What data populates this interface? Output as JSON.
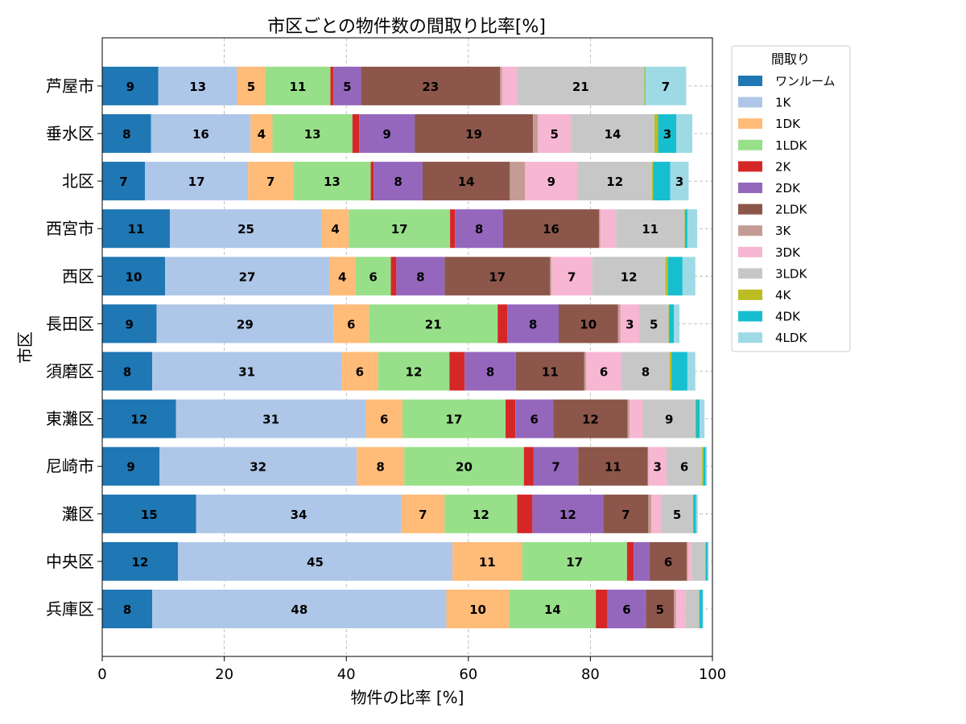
{
  "chart_data": {
    "type": "bar",
    "orientation": "horizontal",
    "stacked": true,
    "title": "市区ごとの物件数の間取り比率[%]",
    "xlabel": "物件の比率 [%]",
    "ylabel": "市区",
    "xlim": [
      0,
      100
    ],
    "xticks": [
      "0",
      "20",
      "40",
      "60",
      "80",
      "100"
    ],
    "grid": true,
    "legend_title": "間取り",
    "legend_position": "outside-top-right",
    "categories": [
      "兵庫区",
      "中央区",
      "灘区",
      "尼崎市",
      "東灘区",
      "須磨区",
      "長田区",
      "西区",
      "西宮市",
      "北区",
      "垂水区",
      "芦屋市"
    ],
    "series": [
      {
        "name": "ワンルーム",
        "color": "#1f77b4",
        "values": [
          8.2,
          12.4,
          15.4,
          9.4,
          12.1,
          8.2,
          8.9,
          10.3,
          11.1,
          7.0,
          8.0,
          9.2
        ]
      },
      {
        "name": "1K",
        "color": "#aec7e8",
        "values": [
          48.2,
          45.0,
          33.6,
          32.3,
          31.1,
          31.0,
          29.0,
          26.9,
          24.9,
          16.9,
          16.3,
          12.9
        ]
      },
      {
        "name": "1DK",
        "color": "#ffbb78",
        "values": [
          10.3,
          11.4,
          7.1,
          7.8,
          6.0,
          6.0,
          5.8,
          4.3,
          4.4,
          7.4,
          3.6,
          4.6
        ]
      },
      {
        "name": "1LDK",
        "color": "#98df8a",
        "values": [
          14.2,
          17.2,
          11.9,
          19.6,
          16.9,
          11.7,
          21.1,
          5.8,
          16.6,
          12.7,
          13.1,
          10.7
        ]
      },
      {
        "name": "2K",
        "color": "#d62728",
        "values": [
          1.9,
          1.1,
          2.5,
          1.6,
          1.6,
          2.5,
          1.6,
          0.9,
          0.8,
          0.5,
          1.1,
          0.5
        ]
      },
      {
        "name": "2DK",
        "color": "#9467bd",
        "values": [
          6.3,
          2.6,
          11.6,
          7.3,
          6.2,
          8.4,
          8.4,
          7.9,
          7.9,
          8.0,
          9.1,
          4.5
        ]
      },
      {
        "name": "2LDK",
        "color": "#8c564b",
        "values": [
          4.6,
          6.1,
          7.4,
          11.4,
          12.2,
          11.2,
          9.7,
          17.3,
          15.7,
          14.3,
          19.4,
          22.8
        ]
      },
      {
        "name": "3K",
        "color": "#c49c94",
        "values": [
          0.3,
          0.2,
          0.5,
          0.1,
          0.3,
          0.3,
          0.4,
          0.2,
          0.2,
          2.5,
          0.8,
          0.3
        ]
      },
      {
        "name": "3DK",
        "color": "#f7b6d2",
        "values": [
          1.6,
          0.6,
          1.6,
          3.0,
          2.2,
          5.8,
          3.1,
          6.7,
          2.6,
          8.6,
          5.4,
          2.5
        ]
      },
      {
        "name": "3LDK",
        "color": "#c7c7c7",
        "values": [
          2.2,
          2.2,
          5.2,
          5.8,
          8.6,
          7.9,
          4.8,
          12.0,
          11.2,
          12.2,
          13.7,
          20.8
        ]
      },
      {
        "name": "4K",
        "color": "#bcbd22",
        "values": [
          0.1,
          0.1,
          0.1,
          0.2,
          0.1,
          0.3,
          0.1,
          0.4,
          0.1,
          0.2,
          0.6,
          0.1
        ]
      },
      {
        "name": "4DK",
        "color": "#17becf",
        "values": [
          0.5,
          0.3,
          0.4,
          0.4,
          0.6,
          2.6,
          0.8,
          2.4,
          0.4,
          2.8,
          3.0,
          0.1
        ]
      },
      {
        "name": "4LDK",
        "color": "#9edae5",
        "values": [
          0.1,
          0.2,
          0.3,
          0.2,
          0.8,
          1.3,
          0.9,
          2.1,
          1.6,
          3.0,
          2.6,
          6.7
        ]
      }
    ]
  }
}
